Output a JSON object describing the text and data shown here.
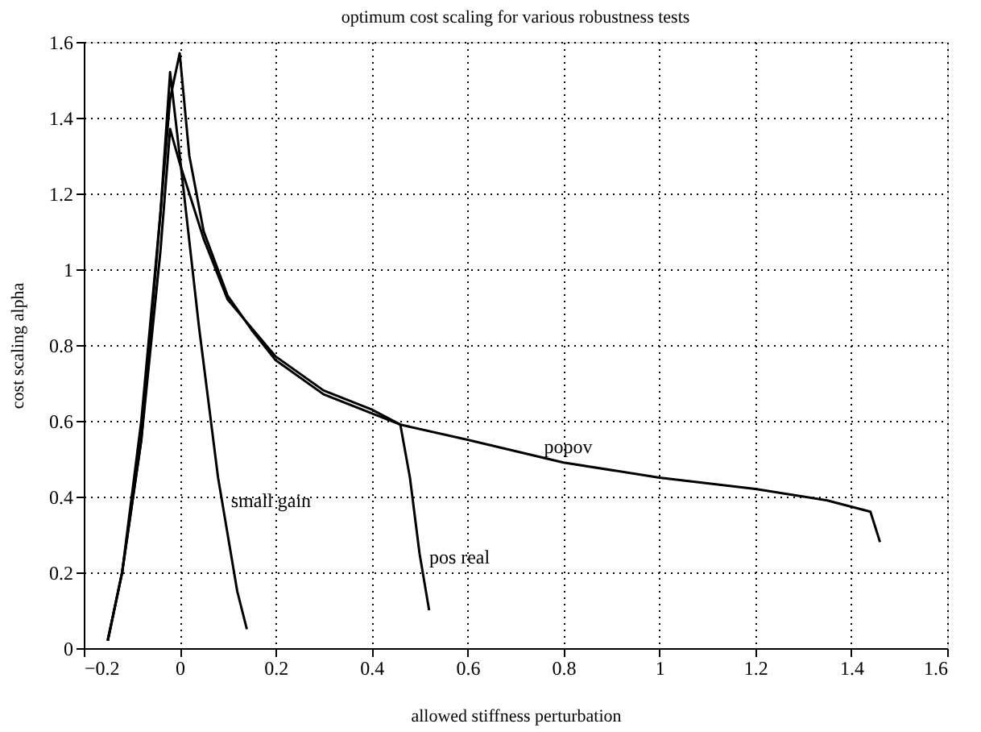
{
  "chart_data": {
    "type": "line",
    "title": "optimum cost scaling for various robustness tests",
    "xlabel": "allowed stiffness perturbation",
    "ylabel": "cost scaling alpha",
    "xlim": [
      -0.2,
      1.6
    ],
    "ylim": [
      0,
      1.6
    ],
    "xticks": [
      -0.2,
      0,
      0.2,
      0.4,
      0.6,
      0.8,
      1,
      1.2,
      1.4,
      1.6
    ],
    "yticks": [
      0,
      0.2,
      0.4,
      0.6,
      0.8,
      1,
      1.2,
      1.4,
      1.6
    ],
    "grid": true,
    "legend": false,
    "line_style": "solid",
    "series": [
      {
        "name": "popov",
        "color": "#000000",
        "x": [
          -0.15,
          -0.12,
          -0.08,
          -0.05,
          -0.02,
          0,
          0.02,
          0.05,
          0.1,
          0.15,
          0.2,
          0.3,
          0.4,
          0.46,
          0.6,
          0.8,
          1.0,
          1.2,
          1.35,
          1.44,
          1.46
        ],
        "values": [
          0.02,
          0.2,
          0.55,
          1.0,
          1.45,
          1.57,
          1.3,
          1.1,
          0.93,
          0.84,
          0.76,
          0.67,
          0.62,
          0.59,
          0.55,
          0.49,
          0.45,
          0.42,
          0.39,
          0.36,
          0.28
        ]
      },
      {
        "name": "pos real",
        "color": "#000000",
        "x": [
          -0.15,
          -0.12,
          -0.08,
          -0.04,
          -0.02,
          0,
          0.05,
          0.1,
          0.2,
          0.3,
          0.4,
          0.46,
          0.48,
          0.5,
          0.52
        ],
        "values": [
          0.02,
          0.2,
          0.55,
          1.05,
          1.37,
          1.28,
          1.08,
          0.92,
          0.77,
          0.68,
          0.63,
          0.59,
          0.45,
          0.25,
          0.1
        ]
      },
      {
        "name": "small gain",
        "color": "#000000",
        "x": [
          -0.15,
          -0.12,
          -0.08,
          -0.04,
          -0.02,
          0,
          0.04,
          0.08,
          0.12,
          0.14
        ],
        "values": [
          0.02,
          0.2,
          0.6,
          1.15,
          1.52,
          1.3,
          0.85,
          0.45,
          0.15,
          0.05
        ]
      }
    ]
  }
}
